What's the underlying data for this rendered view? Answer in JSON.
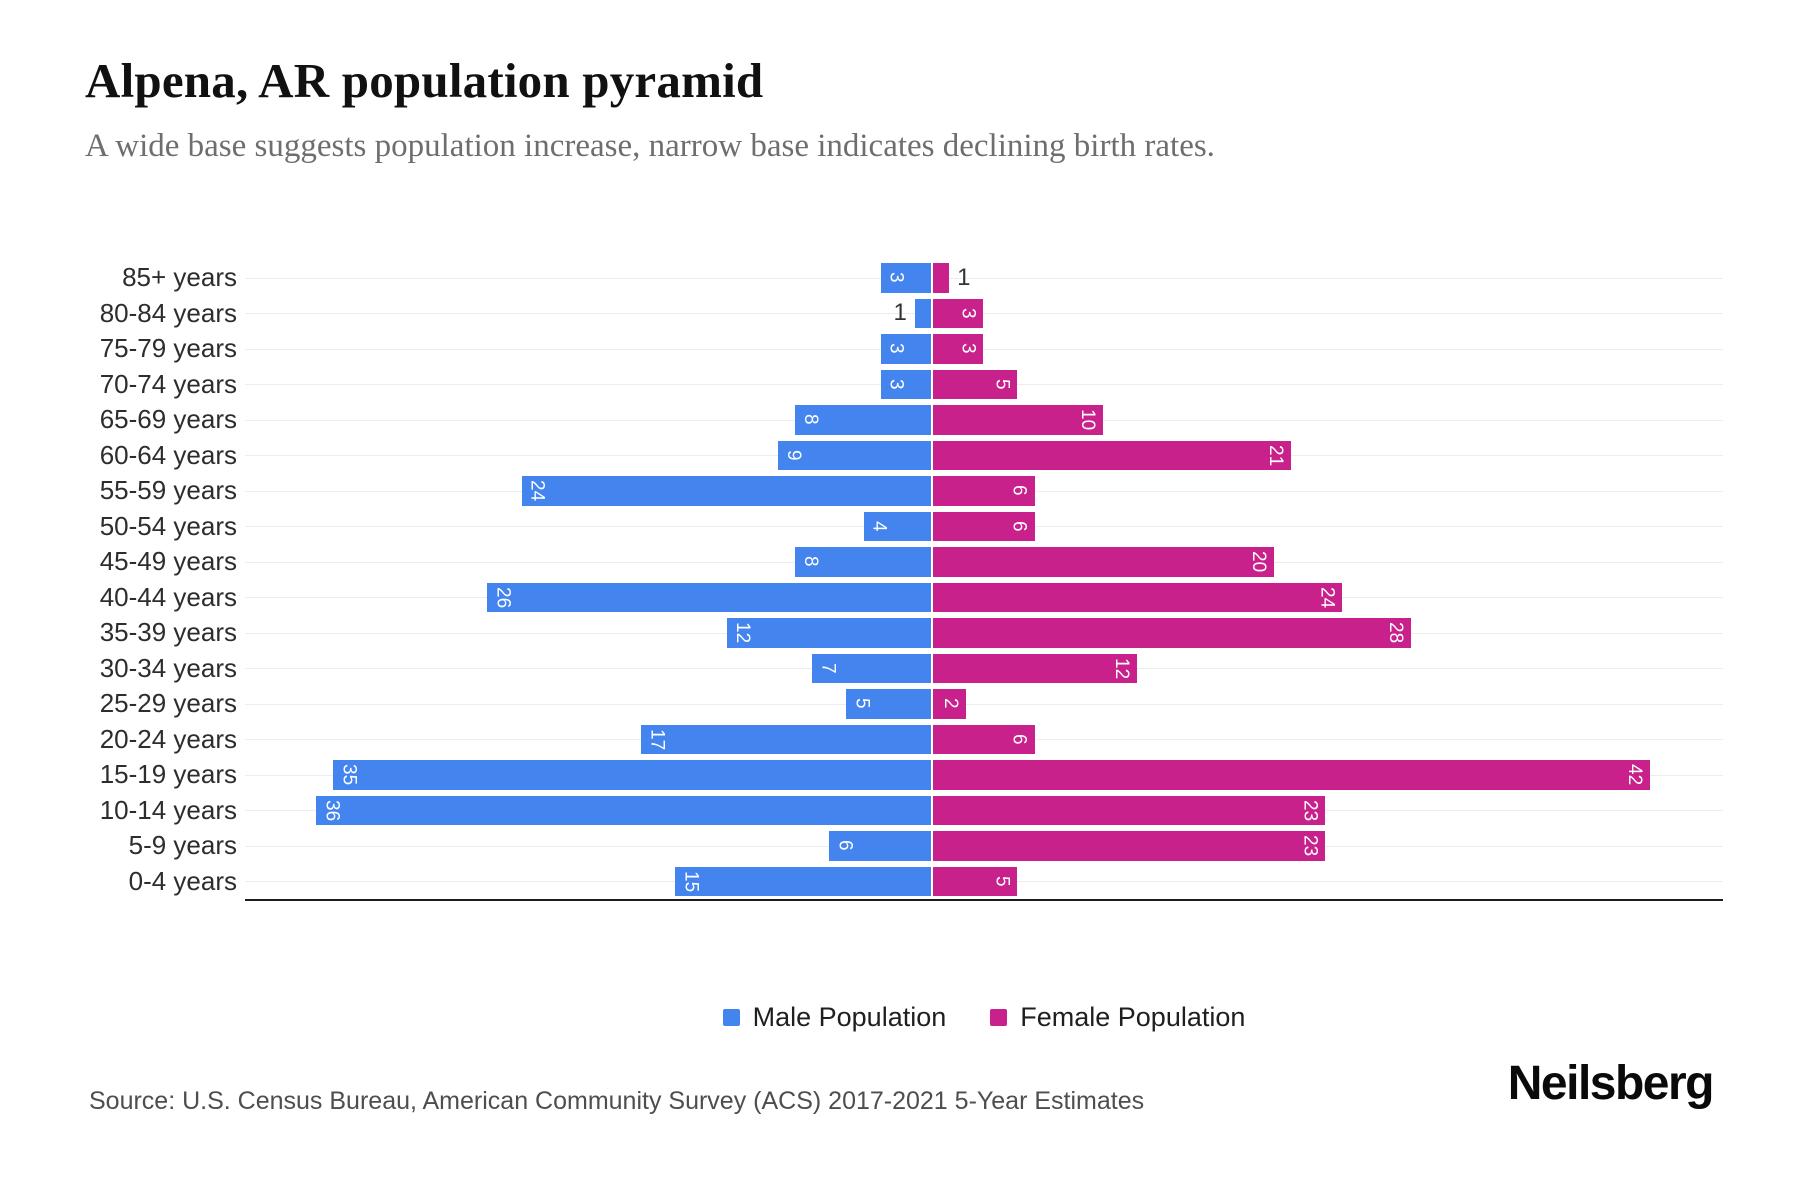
{
  "header": {
    "title": "Alpena, AR population pyramid",
    "subtitle": "A wide base suggests population increase, narrow base indicates declining birth rates."
  },
  "chart_data": {
    "type": "bar",
    "subtype": "population-pyramid",
    "title": "Alpena, AR population pyramid",
    "categories": [
      "85+ years",
      "80-84 years",
      "75-79 years",
      "70-74 years",
      "65-69 years",
      "60-64 years",
      "55-59 years",
      "50-54 years",
      "45-49 years",
      "40-44 years",
      "35-39 years",
      "30-34 years",
      "25-29 years",
      "20-24 years",
      "15-19 years",
      "10-14 years",
      "5-9 years",
      "0-4 years"
    ],
    "series": [
      {
        "name": "Male Population",
        "side": "left",
        "color": "#4484EE",
        "values": [
          3,
          1,
          3,
          3,
          8,
          9,
          24,
          4,
          8,
          26,
          12,
          7,
          5,
          17,
          35,
          36,
          6,
          15
        ]
      },
      {
        "name": "Female Population",
        "side": "right",
        "color": "#C9218C",
        "values": [
          1,
          3,
          3,
          5,
          10,
          21,
          6,
          6,
          20,
          24,
          28,
          12,
          2,
          6,
          42,
          23,
          23,
          5
        ]
      }
    ],
    "xlabel": "",
    "ylabel": "",
    "x_axis_ticks_visible": false,
    "grid": true,
    "legend_position": "bottom",
    "bar_label_color_inside": "#ffffff",
    "bar_label_color_outside": "#333333",
    "layout": {
      "center_pct": 46.48,
      "unit_pct": 1.157,
      "inside_label_min_units": 2
    }
  },
  "footer": {
    "source": "Source: U.S. Census Bureau, American Community Survey (ACS) 2017-2021 5-Year Estimates",
    "brand": "Neilsberg"
  }
}
